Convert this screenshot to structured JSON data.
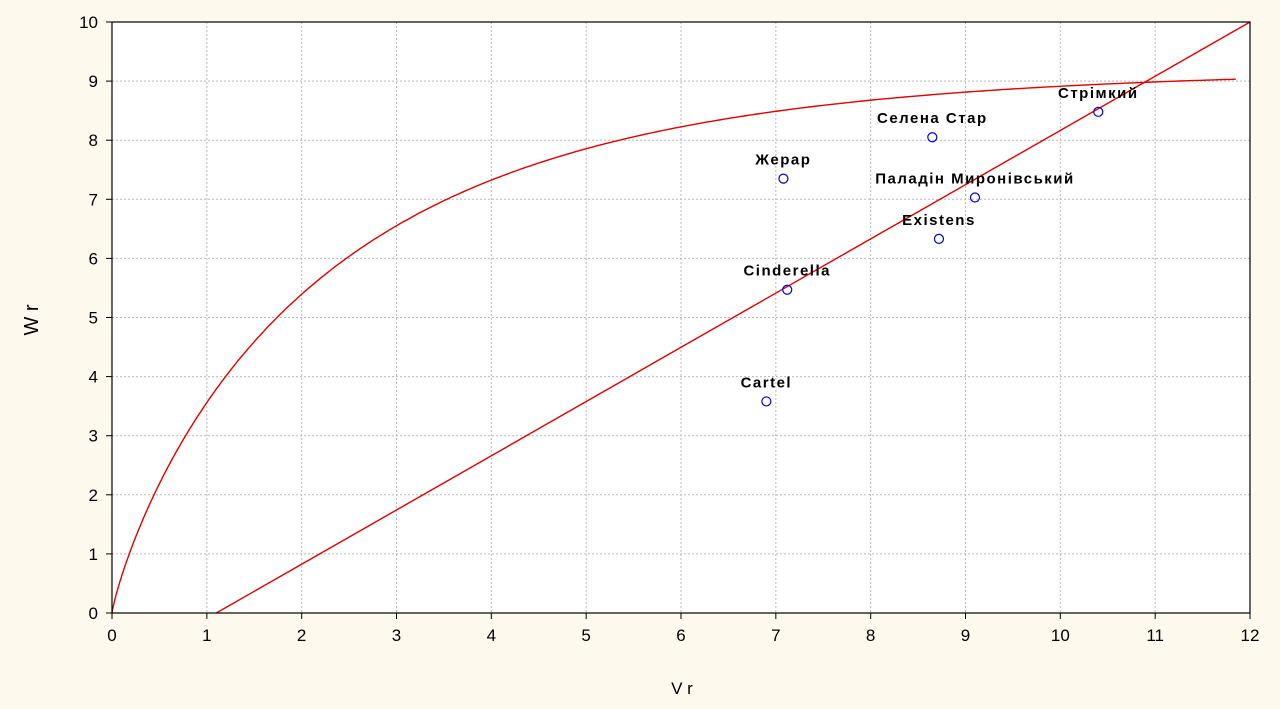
{
  "chart_data": {
    "type": "scatter",
    "title": "",
    "xlabel": "V r",
    "ylabel": "W r",
    "xlim": [
      0,
      12
    ],
    "ylim": [
      0,
      10
    ],
    "xticks": [
      0,
      1,
      2,
      3,
      4,
      5,
      6,
      7,
      8,
      9,
      10,
      11,
      12
    ],
    "yticks": [
      0,
      1,
      2,
      3,
      4,
      5,
      6,
      7,
      8,
      9,
      10
    ],
    "grid": true,
    "colors": {
      "background": "#fdf9ec",
      "plot_area": "#ffffff",
      "grid": "#b8b8b8",
      "curve": "#e00000",
      "marker": "#0000cc",
      "text": "#000000"
    },
    "points": [
      {
        "label": "Стрімкий",
        "x": 10.4,
        "y": 8.48
      },
      {
        "label": "Селена Стар",
        "x": 8.65,
        "y": 8.05
      },
      {
        "label": "Жерар",
        "x": 7.08,
        "y": 7.35
      },
      {
        "label": "Паладін Миронівський",
        "x": 9.1,
        "y": 7.03
      },
      {
        "label": "Existens",
        "x": 8.72,
        "y": 6.33
      },
      {
        "label": "Cinderella",
        "x": 7.12,
        "y": 5.47
      },
      {
        "label": "Cartel",
        "x": 6.9,
        "y": 3.58
      }
    ],
    "lines": [
      {
        "kind": "linear",
        "x": [
          1.1,
          12
        ],
        "y": [
          0,
          10
        ]
      },
      {
        "kind": "saturation",
        "asymptote": 9.2,
        "rate": 0.48,
        "x_range": [
          0,
          11.85
        ]
      }
    ]
  }
}
